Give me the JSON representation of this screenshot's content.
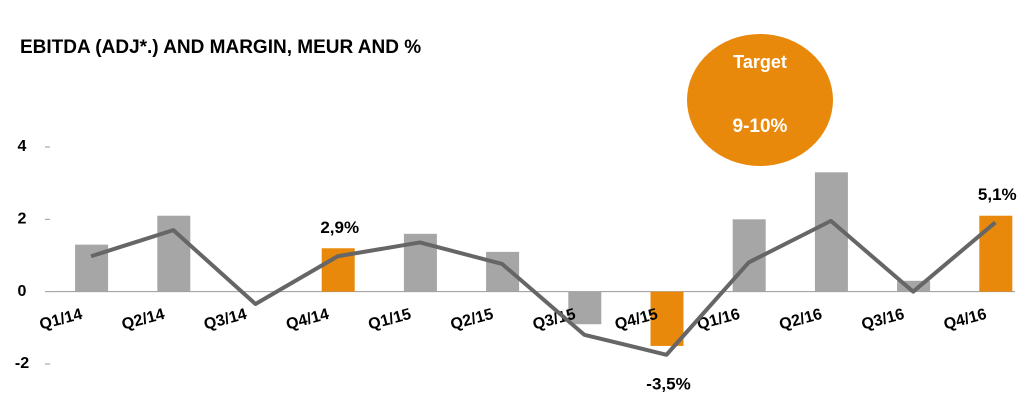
{
  "chart_data": {
    "type": "bar",
    "title": "EBITDA (ADJ*.) AND MARGIN, MEUR AND %",
    "annotations": [
      "Target",
      "9-10%"
    ],
    "categories": [
      "Q1/14",
      "Q2/14",
      "Q3/14",
      "Q4/14",
      "Q1/15",
      "Q2/15",
      "Q3/15",
      "Q4/15",
      "Q1/16",
      "Q2/16",
      "Q3/16",
      "Q4/16"
    ],
    "series": [
      {
        "name": "EBITDA",
        "type": "bar",
        "colors": [
          "#a6a6a6",
          "#a6a6a6",
          "#a6a6a6",
          "#e8890c",
          "#a6a6a6",
          "#a6a6a6",
          "#a6a6a6",
          "#e8890c",
          "#a6a6a6",
          "#a6a6a6",
          "#a6a6a6",
          "#e8890c"
        ],
        "values": [
          1.3,
          2.1,
          0,
          1.2,
          1.6,
          1.1,
          -0.9,
          -1.5,
          2.0,
          3.3,
          0.3,
          2.1
        ]
      },
      {
        "name": "Margin",
        "type": "line",
        "axis": "y2",
        "color": "#666666",
        "values": [
          2.9,
          4.6,
          -0.2,
          2.9,
          3.8,
          2.4,
          -2.2,
          -3.5,
          2.5,
          5.2,
          0.6,
          5.1
        ],
        "value_labels": [
          null,
          null,
          null,
          "2,9%",
          null,
          null,
          null,
          "-3,5%",
          null,
          null,
          null,
          "5,1%"
        ]
      }
    ],
    "ylim": [
      -2,
      4
    ],
    "yticks": [
      -2,
      0,
      2,
      4
    ],
    "y2lim": [
      -4.1,
      10
    ],
    "target_color": "#e8890c"
  }
}
